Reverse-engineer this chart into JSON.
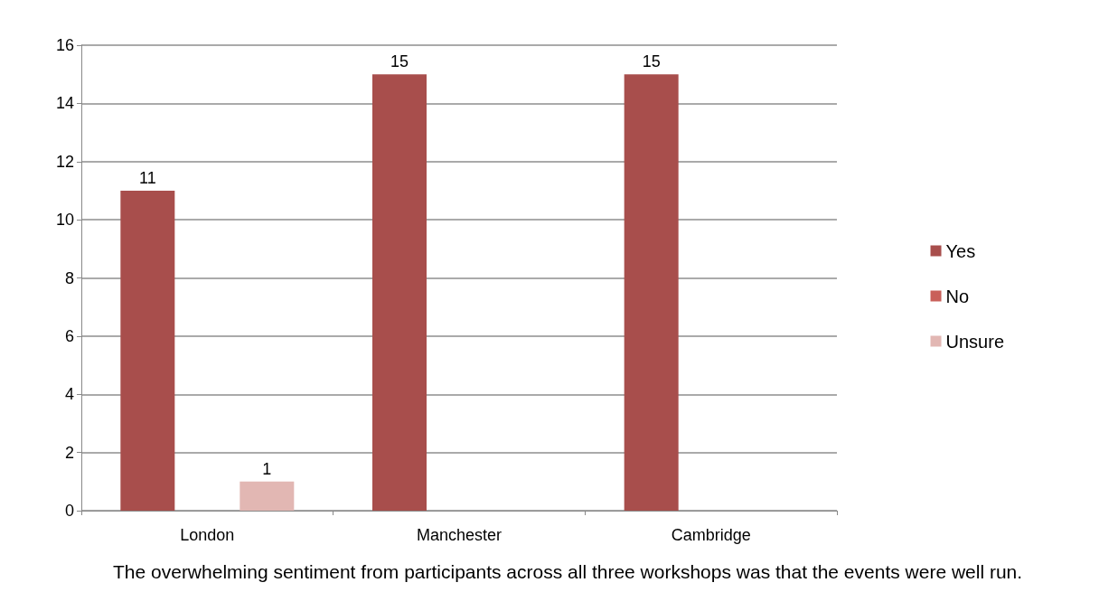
{
  "chart_data": {
    "type": "bar",
    "categories": [
      "London",
      "Manchester",
      "Cambridge"
    ],
    "series": [
      {
        "name": "Yes",
        "color": "#a84e4c",
        "values": [
          11,
          15,
          15
        ]
      },
      {
        "name": "No",
        "color": "#c9605a",
        "values": [
          null,
          null,
          null
        ]
      },
      {
        "name": "Unsure",
        "color": "#e2b7b3",
        "values": [
          1,
          null,
          null
        ]
      }
    ],
    "ylim": [
      0,
      16
    ],
    "yticks": [
      0,
      2,
      4,
      6,
      8,
      10,
      12,
      14,
      16
    ],
    "grid": "y",
    "legend": "right",
    "data_labels": true,
    "annotations": [
      "The overwhelming sentiment from participants across all three workshops was that the events were well run."
    ]
  }
}
